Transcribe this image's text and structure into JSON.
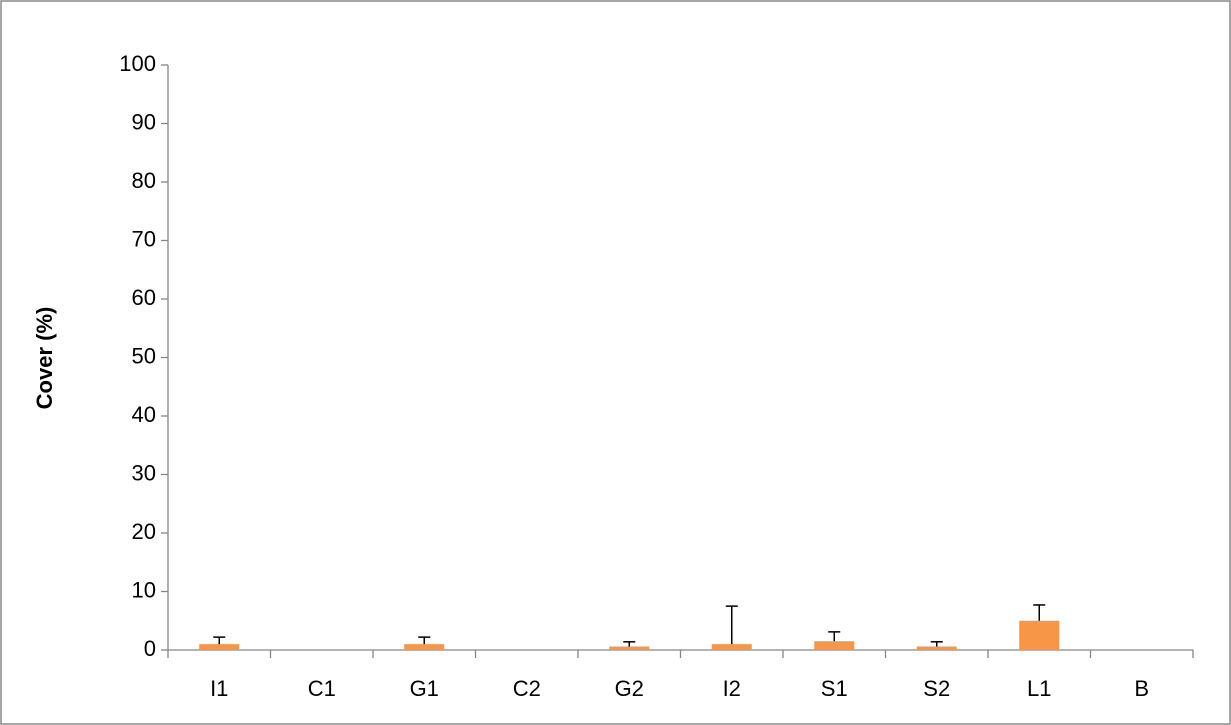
{
  "chart_data": {
    "type": "bar",
    "y_label": "Cover (%)",
    "categories": [
      "I1",
      "C1",
      "G1",
      "C2",
      "G2",
      "I2",
      "S1",
      "S2",
      "L1",
      "B"
    ],
    "values": [
      1,
      0,
      1,
      0,
      0.6,
      1,
      1.5,
      0.6,
      5,
      0
    ],
    "errors": [
      1.2,
      null,
      1.2,
      null,
      0.8,
      6.5,
      1.6,
      0.8,
      2.7,
      null
    ],
    "color": "#f79646",
    "ylim": [
      0,
      100
    ],
    "yticks": [
      0,
      10,
      20,
      30,
      40,
      50,
      60,
      70,
      80,
      90,
      100
    ]
  }
}
